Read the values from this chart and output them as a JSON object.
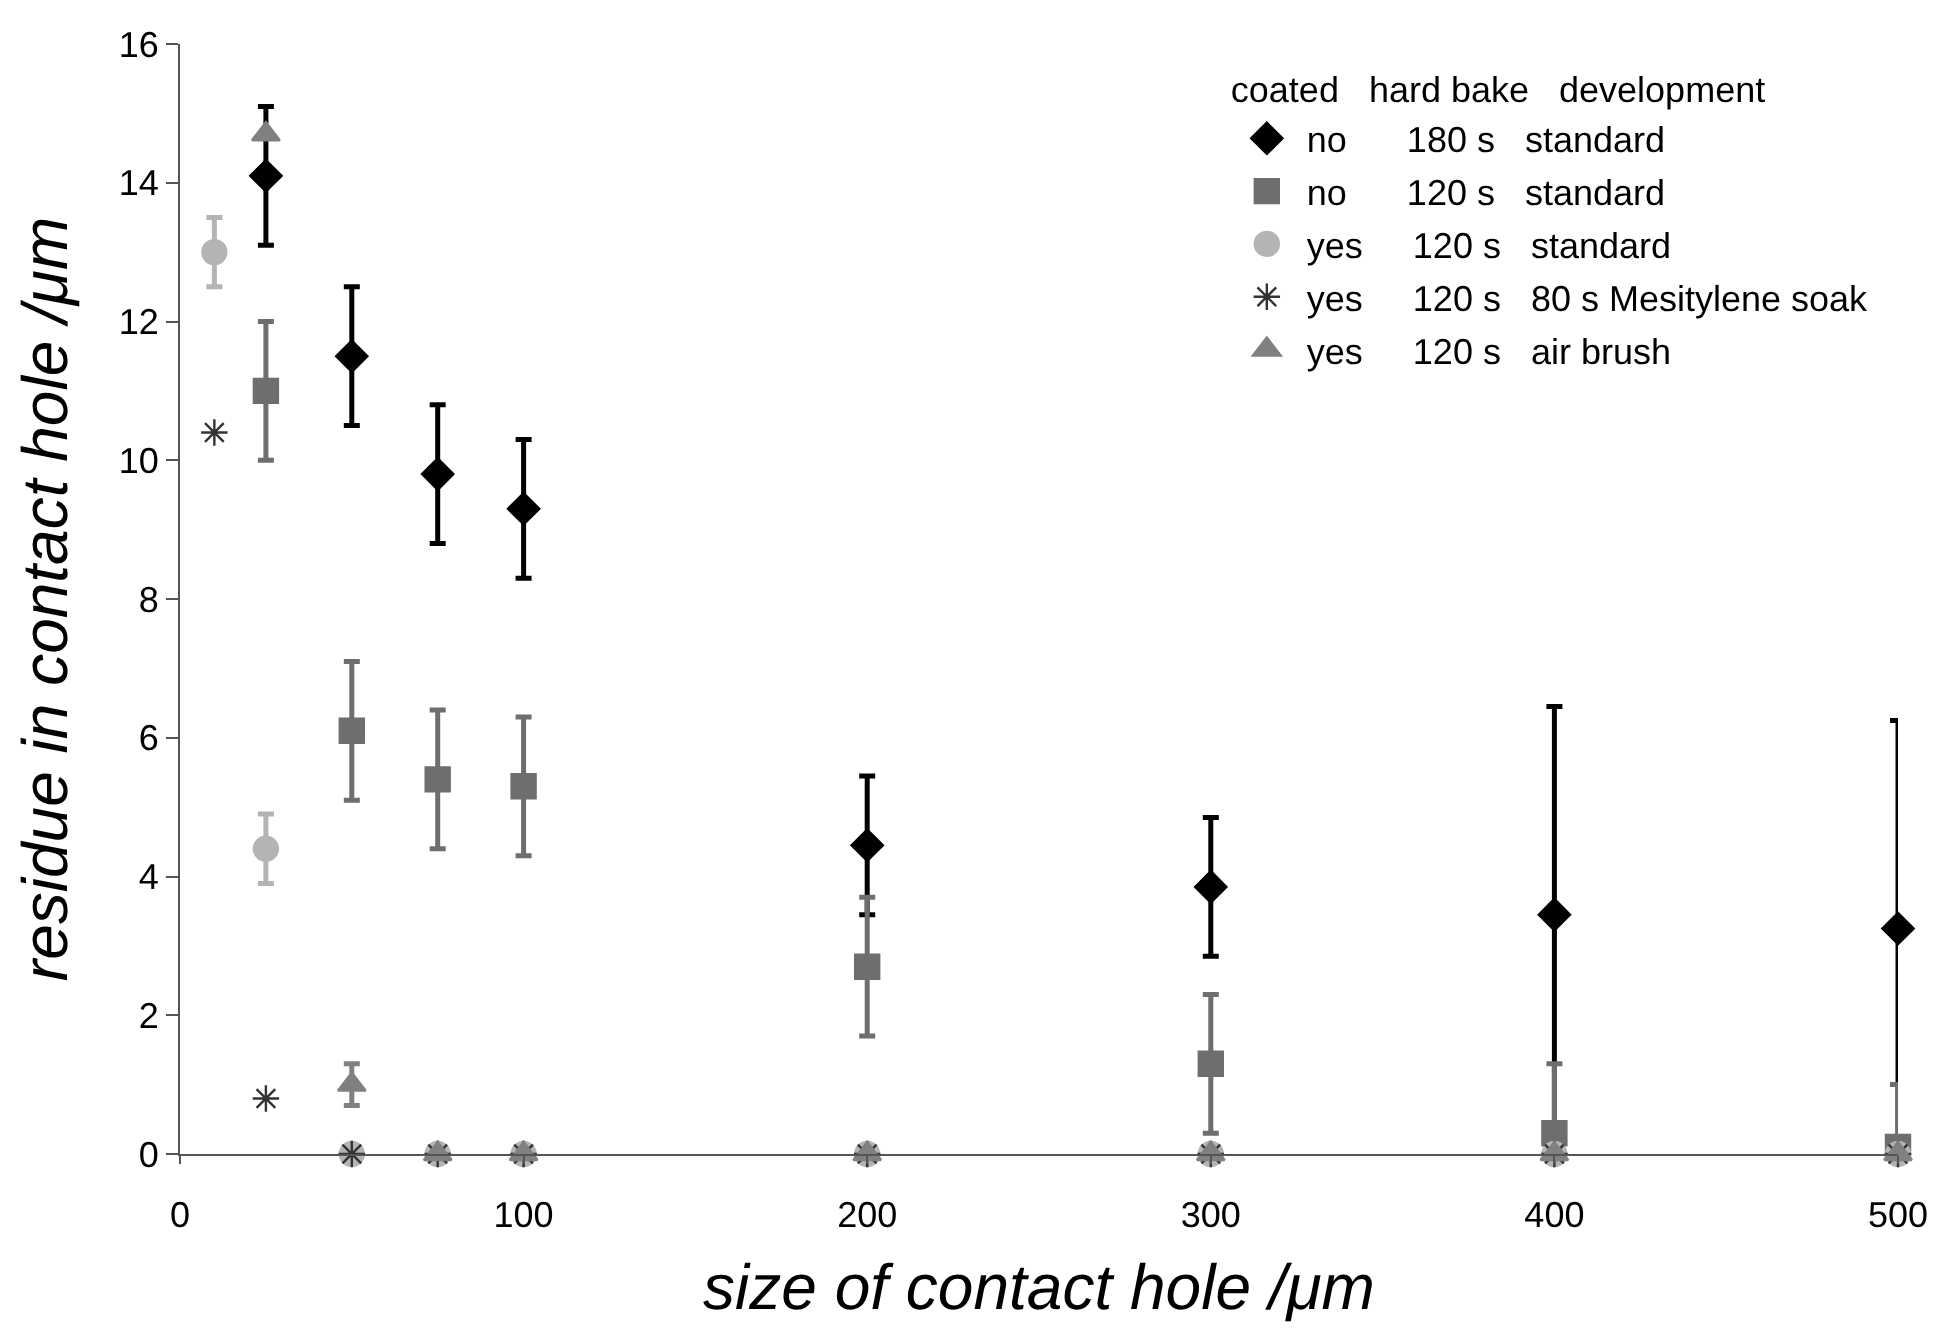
{
  "chart_data": {
    "type": "scatter",
    "xlabel": "size of contact hole /μm",
    "ylabel": "residue in contact hole /μm",
    "legend_title": "coated   hard bake   development",
    "xlim": [
      0,
      500
    ],
    "xticks": [
      0,
      100,
      200,
      300,
      400,
      500
    ],
    "ylim": [
      0,
      16
    ],
    "yticks": [
      0,
      2,
      4,
      6,
      8,
      10,
      12,
      14,
      16
    ],
    "legend": "top right",
    "series": [
      {
        "name": "no      180 s   standard",
        "color": "#000000",
        "marker": "diamond",
        "x": [
          25,
          50,
          75,
          100,
          200,
          300,
          400,
          500
        ],
        "values": [
          14.1,
          11.5,
          9.8,
          9.3,
          4.45,
          3.85,
          3.45,
          3.25
        ],
        "errors": [
          1,
          1,
          1,
          1,
          1,
          1,
          3,
          3
        ]
      },
      {
        "name": "no      120 s   standard",
        "color": "#6e6e6e",
        "marker": "square",
        "x": [
          25,
          50,
          75,
          100,
          200,
          300,
          400,
          500
        ],
        "values": [
          11,
          6.1,
          5.4,
          5.3,
          2.7,
          1.3,
          0.3,
          0.1
        ],
        "errors": [
          1,
          1,
          1,
          1,
          1,
          1,
          [
            0,
            1.3
          ],
          [
            0,
            1.0
          ]
        ]
      },
      {
        "name": "yes     120 s   standard",
        "color": "#b4b4b4",
        "marker": "circle",
        "x": [
          10,
          25,
          50,
          75,
          100,
          200,
          300,
          400,
          500
        ],
        "values": [
          13,
          4.4,
          0,
          0,
          0,
          0,
          0,
          0,
          0
        ],
        "errors": [
          0.5,
          0.5,
          null,
          null,
          null,
          null,
          null,
          null,
          null
        ]
      },
      {
        "name": "yes     120 s   80 s Mesitylene soak",
        "color": "#333333",
        "marker": "cross",
        "x": [
          10,
          25,
          50,
          75,
          100,
          200,
          300,
          400,
          500
        ],
        "values": [
          10.4,
          0.8,
          0,
          0,
          0,
          0,
          0,
          0,
          0
        ]
      },
      {
        "name": "yes     120 s   air brush",
        "color": "#808080",
        "marker": "triangle",
        "x": [
          25,
          50,
          75,
          100,
          200,
          300,
          400,
          500
        ],
        "values": [
          14.7,
          1.0,
          0,
          0,
          0,
          0,
          0,
          0
        ],
        "errors": [
          null,
          0.3,
          null,
          null,
          null,
          null,
          null,
          null
        ]
      }
    ]
  }
}
